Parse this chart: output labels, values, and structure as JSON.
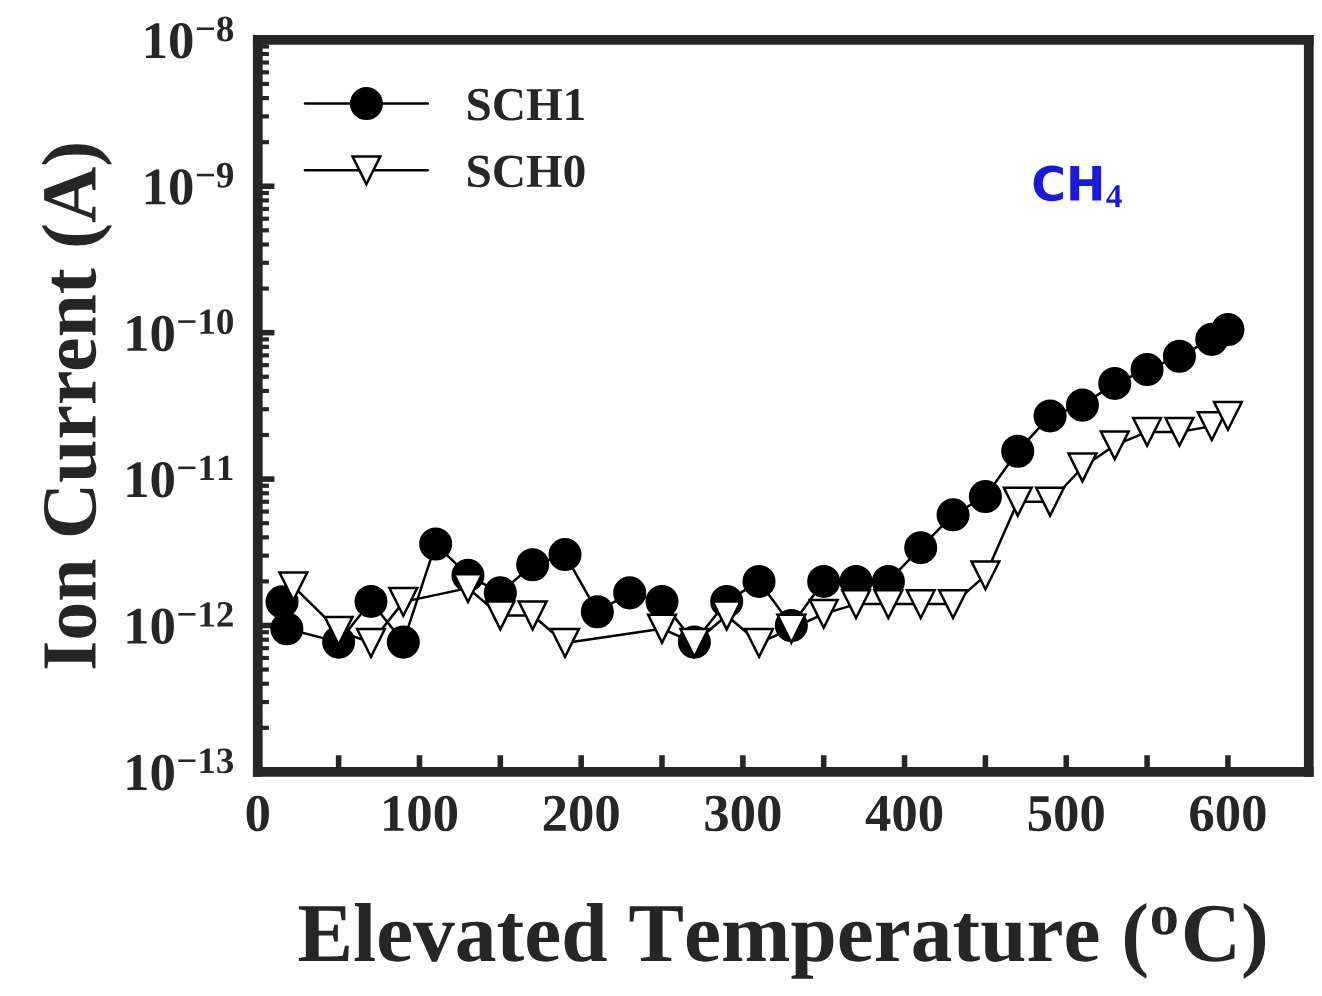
{
  "chart_data": {
    "type": "line",
    "xlabel": "Elevated Temperature ($^{o}$C)",
    "ylabel": "Ion Current (A)",
    "log": "y",
    "xlim": [
      0,
      650
    ],
    "ylim": [
      1e-13,
      1e-08
    ],
    "xticks": [
      0,
      {
        "value": 50,
        "label": null
      },
      100,
      {
        "value": 150,
        "label": null
      },
      200,
      {
        "value": 250,
        "label": null
      },
      300,
      {
        "value": 350,
        "label": null
      },
      400,
      {
        "value": 450,
        "label": null
      },
      500,
      {
        "value": 550,
        "label": null
      },
      600
    ],
    "yticks": [
      {
        "value": 1e-13,
        "label": "10$^{−13}$"
      },
      {
        "value": 1e-12,
        "label": "10$^{−12}$"
      },
      {
        "value": 1e-11,
        "label": "10$^{−11}$"
      },
      {
        "value": 1e-10,
        "label": "10$^{−10}$"
      },
      {
        "value": 1e-09,
        "label": "10$^{−9}$"
      },
      {
        "value": 1e-08,
        "label": "10$^{−8}$"
      }
    ],
    "grid": false,
    "legend": "top left",
    "annotations": [
      "CH$_{4}$"
    ],
    "series": [
      {
        "name": "SCH1",
        "color": "#000000",
        "marker": "circle",
        "x": [
          15,
          18,
          50,
          70,
          90,
          110,
          130,
          150,
          170,
          190,
          210,
          230,
          250,
          270,
          290,
          310,
          330,
          350,
          370,
          390,
          410,
          430,
          450,
          470,
          490,
          510,
          530,
          550,
          570,
          590,
          600
        ],
        "values": [
          1.45e-12,
          9.5e-13,
          7.7e-13,
          1.46e-12,
          7.7e-13,
          3.6e-12,
          2.2e-12,
          1.67e-12,
          2.6e-12,
          3.05e-12,
          1.24e-12,
          1.67e-12,
          1.46e-12,
          7.7e-13,
          1.46e-12,
          2e-12,
          1e-12,
          2e-12,
          2e-12,
          2e-12,
          3.4e-12,
          5.7e-12,
          7.6e-12,
          1.55e-11,
          2.7e-11,
          3.2e-11,
          4.5e-11,
          5.6e-11,
          6.9e-11,
          9e-11,
          1.05e-10
        ]
      },
      {
        "name": "SCH0",
        "color": "#000000",
        "marker": "triangle",
        "x": [
          22,
          50,
          70,
          90,
          130,
          150,
          170,
          190,
          250,
          270,
          290,
          310,
          330,
          350,
          370,
          390,
          410,
          430,
          450,
          470,
          490,
          510,
          530,
          550,
          570,
          590,
          600
        ],
        "values": [
          1.85e-12,
          9.2e-13,
          7.6e-13,
          1.45e-12,
          1.8e-12,
          1.17e-12,
          1.17e-12,
          7.6e-13,
          9.5e-13,
          7.6e-13,
          1.17e-12,
          7.6e-13,
          9.5e-13,
          1.2e-12,
          1.4e-12,
          1.4e-12,
          1.4e-12,
          1.4e-12,
          2.2e-12,
          7e-12,
          7e-12,
          1.2e-11,
          1.7e-11,
          2.1e-11,
          2.1e-11,
          2.3e-11,
          2.7e-11
        ]
      }
    ]
  }
}
